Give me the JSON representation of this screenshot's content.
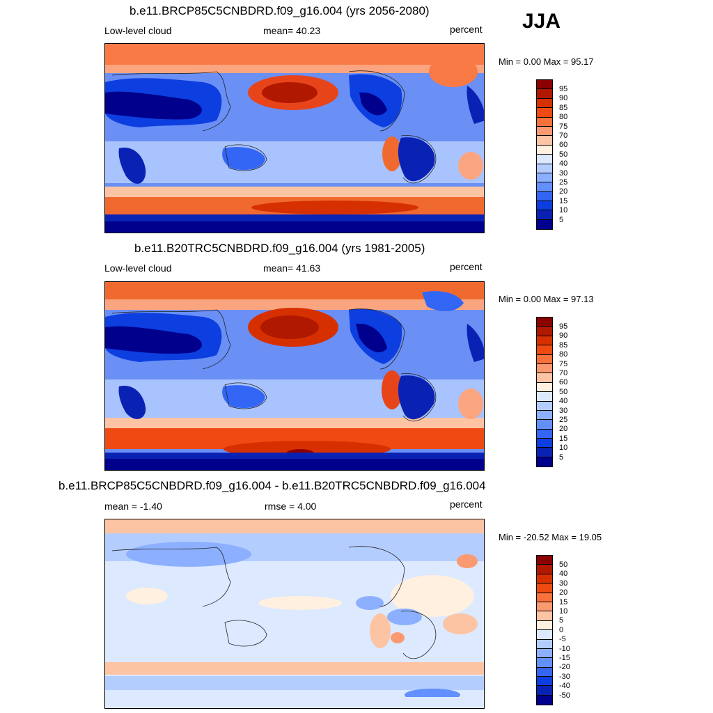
{
  "season": "JJA",
  "panels": [
    {
      "title": "b.e11.BRCP85C5CNBDRD.f09_g16.004 (yrs 2056-2080)",
      "left": "Low-level cloud",
      "center": "mean=  40.23",
      "right": "percent",
      "minmax": "Min =   0.00 Max =  95.17",
      "colorbar_labels": [
        "95",
        "90",
        "85",
        "80",
        "75",
        "70",
        "60",
        "50",
        "40",
        "30",
        "25",
        "20",
        "15",
        "10",
        "5"
      ],
      "colorbar_colors": [
        "#8b0000",
        "#b01800",
        "#d73000",
        "#ee4a12",
        "#f9713b",
        "#fb9a70",
        "#fdc4a4",
        "#fff0e0",
        "#dce9ff",
        "#b4cdff",
        "#8cb0ff",
        "#6390ff",
        "#3466f5",
        "#0d3ee0",
        "#0a22b4",
        "#00008c"
      ]
    },
    {
      "title": "b.e11.B20TRC5CNBDRD.f09_g16.004 (yrs 1981-2005)",
      "left": "Low-level cloud",
      "center": "mean=  41.63",
      "right": "percent",
      "minmax": "Min =   0.00 Max =  97.13",
      "colorbar_labels": [
        "95",
        "90",
        "85",
        "80",
        "75",
        "70",
        "60",
        "50",
        "40",
        "30",
        "25",
        "20",
        "15",
        "10",
        "5"
      ],
      "colorbar_colors": [
        "#8b0000",
        "#b01800",
        "#d73000",
        "#ee4a12",
        "#f9713b",
        "#fb9a70",
        "#fdc4a4",
        "#fff0e0",
        "#dce9ff",
        "#b4cdff",
        "#8cb0ff",
        "#6390ff",
        "#3466f5",
        "#0d3ee0",
        "#0a22b4",
        "#00008c"
      ]
    },
    {
      "title": "b.e11.BRCP85C5CNBDRD.f09_g16.004 - b.e11.B20TRC5CNBDRD.f09_g16.004",
      "left": "mean =  -1.40",
      "center": "rmse =   4.00",
      "right": "percent",
      "minmax": "Min = -20.52 Max =  19.05",
      "colorbar_labels": [
        "50",
        "40",
        "30",
        "20",
        "15",
        "10",
        "5",
        "0",
        "-5",
        "-10",
        "-15",
        "-20",
        "-30",
        "-40",
        "-50"
      ],
      "colorbar_colors": [
        "#8b0000",
        "#b01800",
        "#d73000",
        "#ee4a12",
        "#f9713b",
        "#fb9a70",
        "#fdc4a4",
        "#fff0e0",
        "#dce9ff",
        "#b4cdff",
        "#8cb0ff",
        "#6390ff",
        "#3466f5",
        "#0d3ee0",
        "#0a22b4",
        "#00008c"
      ]
    }
  ]
}
